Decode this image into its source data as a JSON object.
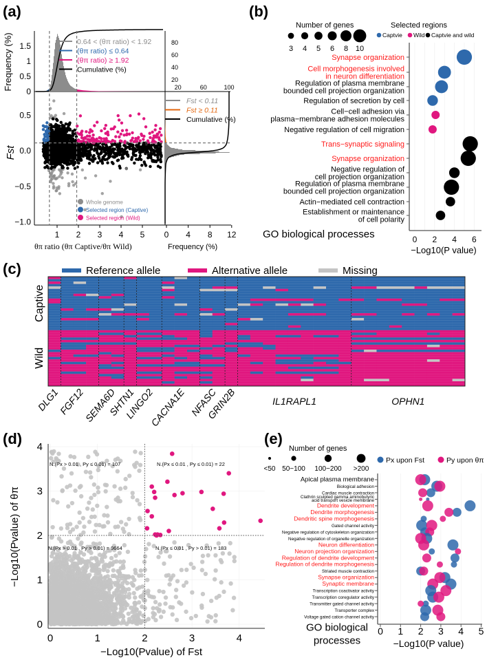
{
  "colors": {
    "blue": "#2e69ac",
    "pink": "#e0177f",
    "black": "#000000",
    "gray": "#8c8c8c",
    "lightgray": "#c4c4c4",
    "orange": "#e2660e",
    "red": "#ff1a1a"
  },
  "panel_labels": {
    "a": "(a)",
    "b": "(b)",
    "c": "(c)",
    "d": "(d)",
    "e": "(e)"
  },
  "chart_data": [
    {
      "id": "a",
      "type": "scatter",
      "xlabel": "θπ ratio (θπ Captive/θπ Wild)",
      "ylabel": "Fst",
      "top_ylabel": "Frequency (%)",
      "right_xlabel": "Frequency (%)",
      "x_ticks": [
        1,
        2,
        3,
        4,
        5
      ],
      "y_ticks": [
        0.5,
        0.0,
        -0.5,
        -1.0
      ],
      "y_tick_labels": [
        "0.5",
        "0.0",
        "−0.5",
        "−1.0"
      ],
      "top_y_ticks": [
        0,
        0.5,
        1,
        1.5
      ],
      "top_right_ticks": [
        20,
        40,
        60,
        80
      ],
      "right_x_ticks": [
        0,
        4,
        8,
        12
      ],
      "right_top_ticks": [
        20,
        60,
        100
      ],
      "thresholds": {
        "ratio_low": 0.64,
        "ratio_high": 1.92,
        "fst": 0.11
      },
      "top_histogram": {
        "ratio": [
          0.3,
          0.4,
          0.5,
          0.6,
          0.64,
          0.7,
          0.8,
          0.9,
          1.0,
          1.1,
          1.2,
          1.3,
          1.4,
          1.5,
          1.6,
          1.8,
          1.92,
          2.2,
          2.6,
          3,
          4,
          5,
          6
        ],
        "freq": [
          0,
          0.01,
          0.03,
          0.08,
          0.12,
          0.3,
          0.9,
          1.6,
          1.9,
          1.7,
          1.2,
          0.8,
          0.5,
          0.32,
          0.2,
          0.1,
          0.07,
          0.04,
          0.02,
          0.01,
          0.005,
          0.002,
          0
        ]
      },
      "right_histogram": {
        "fst": [
          -1,
          -0.5,
          -0.2,
          -0.1,
          -0.05,
          -0.02,
          0,
          0.02,
          0.05,
          0.1,
          0.11,
          0.2,
          0.4,
          0.6,
          0.8
        ],
        "freq": [
          0,
          0,
          0.05,
          0.5,
          3,
          12,
          8,
          3,
          1,
          0.3,
          0.25,
          0.1,
          0.02,
          0,
          0
        ]
      },
      "top_legend": [
        "0.64 < (θπ ratio) < 1.92",
        "(θπ ratio) ≤ 0.64",
        "(θπ ratio) ≥ 1.92",
        "Cumulative (%)"
      ],
      "right_legend": [
        "Fst < 0.11",
        "Fst ≥ 0.11",
        "Cumulative (%)"
      ],
      "point_legend": [
        "Whole genome",
        "Selected region (Captive)",
        "Selected region (Wild)"
      ]
    },
    {
      "id": "b",
      "type": "scatter",
      "title_size": "Number of genes",
      "size_legend": [
        3,
        4,
        5,
        6,
        8,
        10
      ],
      "title_color": "Selected regions",
      "color_legend": [
        {
          "label": "Captvie",
          "group": "captive"
        },
        {
          "label": "Wild",
          "group": "wild"
        },
        {
          "label": "Captvie and wild",
          "group": "both"
        }
      ],
      "ylabel": "GO biological processes",
      "xlabel": "−Log10(P value)",
      "x_ticks": [
        0,
        2,
        4,
        6
      ],
      "rows": [
        {
          "term": "Synapse organization",
          "highlight": true,
          "value": 5.0,
          "genes": 10,
          "group": "captive"
        },
        {
          "term": "Cell morphogenesis involved\nin neuron differentiation",
          "highlight": true,
          "value": 3.0,
          "genes": 8,
          "group": "captive"
        },
        {
          "term": "Regulation of plasma membrane\nbounded cell projection organization",
          "highlight": false,
          "value": 2.7,
          "genes": 8,
          "group": "captive"
        },
        {
          "term": "Regulation of secretion by cell",
          "highlight": false,
          "value": 1.8,
          "genes": 6,
          "group": "captive"
        },
        {
          "term": "Cell−cell adhesion via\nplasma−membrane adhesion molecules",
          "highlight": false,
          "value": 2.1,
          "genes": 4,
          "group": "wild"
        },
        {
          "term": "Negative regulation of cell migration",
          "highlight": false,
          "value": 1.8,
          "genes": 4,
          "group": "wild"
        },
        {
          "term": "Trans−synaptic signaling",
          "highlight": true,
          "value": 5.6,
          "genes": 10,
          "group": "both"
        },
        {
          "term": "Synapse organization",
          "highlight": true,
          "value": 5.4,
          "genes": 10,
          "group": "both"
        },
        {
          "term": "Negative regulation of\ncell projection organization",
          "highlight": false,
          "value": 4.0,
          "genes": 6,
          "group": "both"
        },
        {
          "term": "Regulation of plasma membrane\nbounded cell projection organization",
          "highlight": false,
          "value": 3.7,
          "genes": 10,
          "group": "both"
        },
        {
          "term": "Actin−mediated cell contraction",
          "highlight": false,
          "value": 3.6,
          "genes": 5,
          "group": "both"
        },
        {
          "term": "Establishment or maintenance\nof cell polarity",
          "highlight": false,
          "value": 2.6,
          "genes": 5,
          "group": "both"
        }
      ]
    },
    {
      "id": "c",
      "type": "heatmap",
      "legend": [
        {
          "label": "Reference allele",
          "code": "R"
        },
        {
          "label": "Alternative allele",
          "code": "A"
        },
        {
          "label": "Missing",
          "code": "M"
        }
      ],
      "row_groups": [
        {
          "label": "Captive",
          "rows": 22
        },
        {
          "label": "Wild",
          "rows": 23
        }
      ],
      "genes": [
        {
          "name": "DLG1",
          "cols": 1
        },
        {
          "name": "FGF12",
          "cols": 3
        },
        {
          "name": "SEMA6D",
          "cols": 2
        },
        {
          "name": "SHTN1",
          "cols": 1
        },
        {
          "name": "LINGO2",
          "cols": 2
        },
        {
          "name": "CACNA1E",
          "cols": 3
        },
        {
          "name": "NFASC",
          "cols": 2
        },
        {
          "name": "GRIN2B",
          "cols": 1
        },
        {
          "name": "IL1RAPL1",
          "cols": 9
        },
        {
          "name": "OPHN1",
          "cols": 9
        }
      ],
      "matrix": [
        "A|RRR|RR|A|RR|RMR|RR|R|RRRRRRRRR|RRRRRRRRR",
        "R|RRR|RR|R|RR|RRR|RR|R|RRRRRRRRR|RRRRRRRRR",
        "A|RMR|RR|R|RR|ARR|RR|R|RRRRRRRRR|RRRRRRRRR",
        "R|RRR|RR|R|RR|RRR|RR|R|RRRRRRRRR|RRRRRRRRR",
        "M|RRR|RR|R|RR|MRR|RA|A|RRMRRRMRR|AAMMMAMMM",
        "R|RRR|RR|R|RR|ARR|MM|M|RRRARRRRR|RRRRRRRRR",
        "R|RRR|RR|R|RR|RRR|RR|R|RRRRRRRRR|RRRRRRRRR",
        "R|RAM|RA|R|RR|RRR|RR|R|RRRRRRRRR|RRRRRRRRR",
        "R|RRR|AR|R|RR|ARR|RR|R|RRRRRRRRR|RRRRRRRRR",
        "A|RRR|RR|R|RR|RRR|RR|R|RAAAAARRA|ARAARRRAA",
        "A|RRR|RR|R|RR|RRR|RR|R|RRRRRRRRR|RRRRRRRRR",
        "R|RRR|RR|M|RR|RMR|RR|R|MARMAMARR|RRRRAARRR",
        "R|RRR|RR|R|RR|RRR|RR|R|RRRRRRRRR|RRRRRRRRR",
        "R|ARA|AM|R|RR|RRR|AR|M|RRRRRRRRR|RRRRRRRRR",
        "R|RRR|RR|R|RR|RRR|RR|R|RRRRRRRRR|RRRRRRRRR",
        "R|RRR|MA|A|AR|RAR|MA|R|RRRRAAARR|AARRARARA",
        "R|RRR|RR|R|RR|RRR|RR|R|RRRRRRRRR|RRRRRRRRR",
        "R|AAA|RR|R|AR|RRR|RR|R|AMRRRRRRR|MRRRRRRRR",
        "R|RRR|RR|R|RR|RRR|RR|R|RRRRRRRRR|RRRRRRRRR",
        "R|RRR|RR|R|RR|RRR|RR|A|RRRRRRRRR|RRRRRRRRR",
        "R|RRR|RR|R|RR|RRR|RR|R|RRRRARRRR|RRRARRRRR",
        "R|RRR|RR|R|RR|RRR|RR|R|RRRRRRRRR|RRRRRRRRR",
        "A|AAA|AA|A|AA|AAA|RA|A|AAAAAAAAA|AAAAAAAAA",
        "A|AAA|RR|A|RR|AAA|RA|A|AAAAAAAAA|RRAAAARAA",
        "A|AAA|AA|R|AA|RAA|RA|A|RAARRARRA|AAAAAAAAA",
        "A|RRR|AA|A|RR|RRA|AA|A|RAAAAAAAA|RRRRRRRRR",
        "A|AAA|AA|A|AA|AAA|AA|A|AAAAAAAAA|AAAAAAAAA",
        "A|RRR|RR|R|AA|AAA|AA|R|RRAAAAAAA|RRRRRRRRR",
        "A|RRA|AA|A|AA|ARR|AR|A|RRRAAAAAA|AAAAAAMAA",
        "A|RRA|AA|A|RR|RAA|RA|R|AARAAAAAA|AAAAAAAAA",
        "R|AAA|AA|A|RR|RAR|AA|R|AAAAAAAAA|RMRRRRRRR",
        "A|AAA|RA|A|AA|AAA|AA|A|AAAAAAAAA|AAAAAAAAA",
        "A|ARR|AR|A|AA|RAA|RA|A|RAARRRRRA|AAAAAAAAA",
        "R|AAA|AA|A|RR|ARA|RR|A|AAAAARAAA|AAAAAAAAA",
        "A|AAA|AA|A|AA|AAA|AA|A|AAARRRRRA|AAAAAAMAA",
        "A|RRA|AR|A|AA|ARR|AA|A|ARARRRARR|AAAAAAAAA",
        "A|AAA|RA|A|RR|RRR|RR|A|AAAAAAAAA|AAAAAAAAA",
        "A|AAA|RR|A|AA|AAA|AA|A|AAAARRRRA|AAAAAAAAA",
        "A|AAA|AA|A|AA|AAA|AA|A|AAAAAAAAA|AAAAAAAAA",
        "A|RRA|AA|A|RR|ARR|RA|A|ARARRRRRA|AAAAAAAAA",
        "A|AAA|RR|A|AA|AAA|AA|A|AAAAAAAAA|AAAAAAAAA",
        "A|AAA|AR|A|RR|ARA|RA|A|AAAAARAAA|AAAAAAAAA",
        "A|AAA|AA|A|AA|AAA|AA|A|AAAAAMAAA|AMMAAAAAM",
        "A|AAA|AA|A|AA|RAA|RA|A|AAAAAAAAA|AAAAAAAAA",
        "A|AAA|AA|A|AA|AAA|AA|A|AAAAAAAAA|AAAAAAAAA"
      ]
    },
    {
      "id": "d",
      "type": "scatter",
      "xlabel": "−Log10(Pvalue) of Fst",
      "ylabel": "−Log10(Pvalue) of θπ",
      "x_ticks": [
        0,
        1,
        2,
        3,
        4
      ],
      "y_ticks": [
        0,
        1,
        2,
        3,
        4
      ],
      "xlim": [
        0,
        4.55
      ],
      "ylim": [
        0,
        4
      ],
      "threshold": 2,
      "quadrant_labels": [
        {
          "text": "N.(Px > 0.01 , Py ≤ 0.01) = 107",
          "quadrant": "top-left"
        },
        {
          "text": "N.(Px ≤ 0.01 , Py ≤ 0.01) = 22",
          "quadrant": "top-right"
        },
        {
          "text": "N.(Px > 0.01 , Py > 0.01) = 9664",
          "quadrant": "bottom-left"
        },
        {
          "text": "N.(Px ≤ 0.01 , Py > 0.01) = 183",
          "quadrant": "bottom-right"
        }
      ],
      "counts": {
        "top_left": 107,
        "top_right": 22,
        "bottom_left": 9664,
        "bottom_right": 183
      },
      "highlighted_points": [
        [
          2.58,
          3.84
        ],
        [
          3.78,
          3.4
        ],
        [
          2.15,
          3.1
        ],
        [
          2.48,
          3.21
        ],
        [
          2.2,
          2.98
        ],
        [
          2.22,
          2.85
        ],
        [
          2.63,
          2.91
        ],
        [
          2.8,
          2.95
        ],
        [
          3.2,
          2.98
        ],
        [
          3.67,
          2.94
        ],
        [
          3.44,
          2.6
        ],
        [
          2.06,
          2.55
        ],
        [
          2.15,
          2.43
        ],
        [
          3.68,
          2.29
        ],
        [
          3.58,
          2.16
        ],
        [
          2.05,
          2.16
        ],
        [
          2.51,
          2.1
        ],
        [
          2.22,
          2.02
        ],
        [
          2.27,
          2.02
        ],
        [
          2.33,
          2.01
        ],
        [
          4.45,
          2.33
        ],
        [
          2.25,
          2.0
        ]
      ]
    },
    {
      "id": "e",
      "type": "scatter",
      "title_size": "Number of genes",
      "size_legend": [
        "<50",
        "50−100",
        "100−200",
        ">200"
      ],
      "color_legend": [
        "Px upon Fst",
        "Py upon θπ"
      ],
      "ylabel": "GO biological processes",
      "xlabel": "−Log10(P value)",
      "x_ticks": [
        0,
        1,
        2,
        3,
        4,
        5
      ],
      "rows": [
        {
          "term": "Apical plasma membrane",
          "highlight": false,
          "big": true,
          "fst": 2.2,
          "fst_size": 4,
          "theta": 2.0,
          "theta_size": 4
        },
        {
          "term": "Biological adhesion",
          "highlight": false,
          "fst": 2.8,
          "fst_size": 4,
          "theta": 2.95,
          "theta_size": 4
        },
        {
          "term": "Cardiac muscle contraction",
          "highlight": false,
          "fst": 2.5,
          "fst_size": 3,
          "theta": 2.1,
          "theta_size": 3
        },
        {
          "term": "Clathrin sculpted gamma aminobutyric\nacid transport vesicle membrane",
          "highlight": false,
          "fst": 2.35,
          "fst_size": 1,
          "theta": 2.0,
          "theta_size": 1
        },
        {
          "term": "Dendrite development",
          "highlight": true,
          "fst": 4.45,
          "fst_size": 4,
          "theta": 2.35,
          "theta_size": 4
        },
        {
          "term": "Dendrite morphogenesis",
          "highlight": true,
          "fst": 3.8,
          "fst_size": 3,
          "theta": 3.4,
          "theta_size": 3
        },
        {
          "term": "Dendritic spine morphogenesis",
          "highlight": true,
          "fst": 2.15,
          "fst_size": 2,
          "theta": 3.1,
          "theta_size": 2
        },
        {
          "term": "Gated channel activity",
          "highlight": false,
          "fst": 2.05,
          "fst_size": 4,
          "theta": 2.55,
          "theta_size": 4
        },
        {
          "term": "Negative regulation of cytoskeleton organization",
          "highlight": false,
          "fst": 2.2,
          "fst_size": 3,
          "theta": 2.45,
          "theta_size": 3
        },
        {
          "term": "Negative regulation of organelle organization",
          "highlight": false,
          "fst": 2.3,
          "fst_size": 4,
          "theta": 2.0,
          "theta_size": 4
        },
        {
          "term": "Neuron differentiation",
          "highlight": true,
          "fst": 3.6,
          "fst_size": 4,
          "theta": 2.15,
          "theta_size": 4
        },
        {
          "term": "Neuron projection organization",
          "highlight": true,
          "fst": 2.55,
          "fst_size": 2,
          "theta": 3.85,
          "theta_size": 2
        },
        {
          "term": "Regulation of dendrite development",
          "highlight": true,
          "fst": 3.7,
          "fst_size": 3,
          "theta": 2.3,
          "theta_size": 3
        },
        {
          "term": "Regulation of dendrite morphogenesis",
          "highlight": true,
          "fst": 3.65,
          "fst_size": 2,
          "theta": 2.95,
          "theta_size": 2
        },
        {
          "term": "Striated muscle contraction",
          "highlight": false,
          "fst": 2.0,
          "fst_size": 3,
          "theta": 2.15,
          "theta_size": 3
        },
        {
          "term": "Synapse organization",
          "highlight": true,
          "fst": 3.2,
          "fst_size": 4,
          "theta": 2.95,
          "theta_size": 4
        },
        {
          "term": "Synaptic membrane",
          "highlight": true,
          "fst": 3.5,
          "fst_size": 4,
          "theta": 2.6,
          "theta_size": 4
        },
        {
          "term": "Transcription coactivator activity",
          "highlight": false,
          "fst": 2.5,
          "fst_size": 4,
          "theta": 3.25,
          "theta_size": 4
        },
        {
          "term": "Transcription coregulator activity",
          "highlight": false,
          "fst": 2.6,
          "fst_size": 4,
          "theta": 2.9,
          "theta_size": 4
        },
        {
          "term": "Transmitter gated channel activity",
          "highlight": false,
          "fst": 2.25,
          "fst_size": 2,
          "theta": 2.0,
          "theta_size": 2
        },
        {
          "term": "Transporter complex",
          "highlight": false,
          "fst": 2.25,
          "fst_size": 4,
          "theta": 2.85,
          "theta_size": 4
        },
        {
          "term": "Voltage gated cation channel activity",
          "highlight": false,
          "fst": 2.2,
          "fst_size": 3,
          "theta": 3.0,
          "theta_size": 3
        }
      ]
    }
  ]
}
